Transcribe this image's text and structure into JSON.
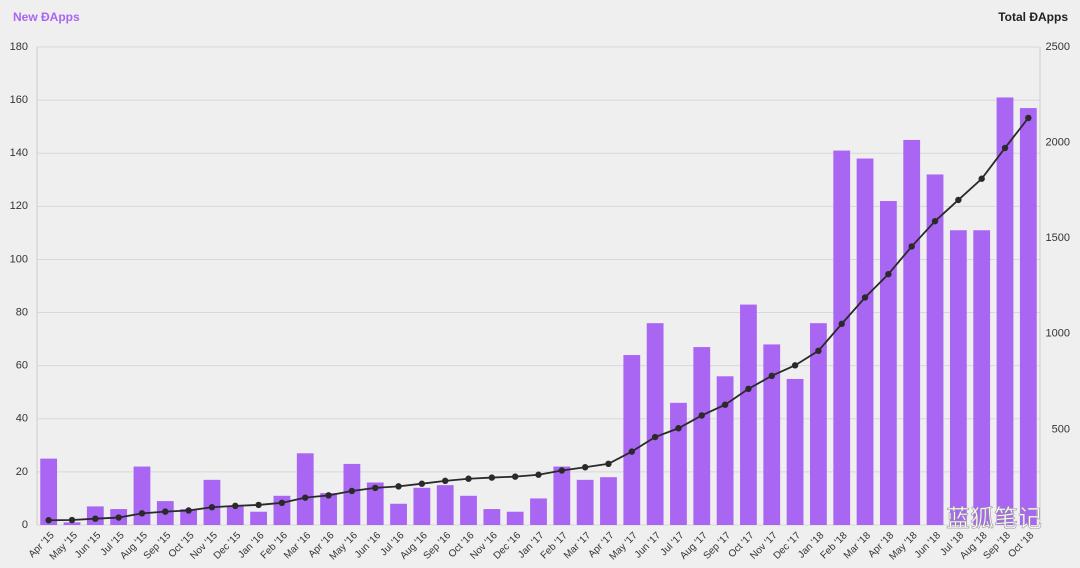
{
  "chart_data": {
    "type": "bar-line",
    "y_label": "New ĐApps",
    "y2_label": "Total ĐApps",
    "watermark": "蓝狐笔记",
    "categories": [
      "Apr '15",
      "May '15",
      "Jun '15",
      "Jul '15",
      "Aug '15",
      "Sep '15",
      "Oct '15",
      "Nov '15",
      "Dec '15",
      "Jan '16",
      "Feb '16",
      "Mar '16",
      "Apr '16",
      "May '16",
      "Jun '16",
      "Jul '16",
      "Aug '16",
      "Sep '16",
      "Oct '16",
      "Nov '16",
      "Dec '16",
      "Jan '17",
      "Feb '17",
      "Mar '17",
      "Apr '17",
      "May '17",
      "Jun '17",
      "Jul '17",
      "Aug '17",
      "Sep '17",
      "Oct '17",
      "Nov '17",
      "Dec '17",
      "Jan '18",
      "Feb '18",
      "Mar '18",
      "Apr '18",
      "May '18",
      "Jun '18",
      "Jul '18",
      "Aug '18",
      "Sep '18",
      "Oct '18"
    ],
    "series": [
      {
        "name": "New ĐApps",
        "type": "bar",
        "color": "#a966f2",
        "values": [
          25,
          1,
          7,
          6,
          22,
          9,
          6,
          17,
          7,
          5,
          11,
          27,
          12,
          23,
          16,
          8,
          14,
          15,
          11,
          6,
          5,
          10,
          22,
          17,
          18,
          64,
          76,
          46,
          67,
          56,
          83,
          68,
          55,
          76,
          141,
          138,
          122,
          145,
          132,
          111,
          111,
          161,
          157
        ]
      },
      {
        "name": "Total ĐApps",
        "type": "line",
        "axis": "y2",
        "color": "#2a2a2a",
        "values": [
          25,
          26,
          33,
          39,
          61,
          70,
          76,
          93,
          100,
          105,
          116,
          143,
          155,
          178,
          194,
          202,
          216,
          231,
          242,
          248,
          253,
          263,
          285,
          302,
          320,
          384,
          460,
          506,
          573,
          629,
          712,
          780,
          835,
          911,
          1052,
          1190,
          1312,
          1457,
          1589,
          1700,
          1811,
          1972,
          2129
        ]
      }
    ],
    "ylim": [
      0,
      180
    ],
    "yticks": [
      0,
      20,
      40,
      60,
      80,
      100,
      120,
      140,
      160,
      180
    ],
    "y2lim": [
      0,
      2500
    ],
    "y2ticks": [
      500,
      1000,
      1500,
      2000,
      2500
    ],
    "grid": true
  }
}
